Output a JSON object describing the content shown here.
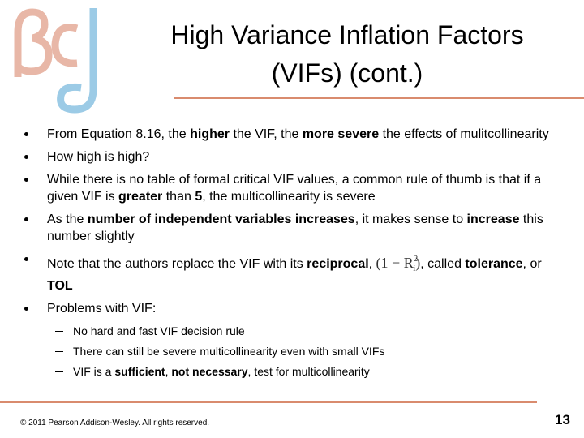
{
  "header": {
    "title": "High Variance Inflation Factors (VIFs) (cont.)"
  },
  "bullets": [
    {
      "runs": [
        {
          "text": "From Equation 8.16, the ",
          "style": "normal"
        },
        {
          "text": "higher",
          "style": "bold"
        },
        {
          "text": " the VIF, the ",
          "style": "normal"
        },
        {
          "text": "more severe",
          "style": "bold"
        },
        {
          "text": " the effects of mulitcollinearity",
          "style": "normal"
        }
      ]
    },
    {
      "runs": [
        {
          "text": "How high is high?",
          "style": "normal"
        }
      ]
    },
    {
      "runs": [
        {
          "text": "While there is no table of formal critical VIF values, a common rule of thumb is that if a given VIF is ",
          "style": "normal"
        },
        {
          "text": "greater",
          "style": "bold"
        },
        {
          "text": " than ",
          "style": "normal"
        },
        {
          "text": "5",
          "style": "bold"
        },
        {
          "text": ", the multicollinearity is severe",
          "style": "normal"
        }
      ]
    },
    {
      "runs": [
        {
          "text": "As the ",
          "style": "normal"
        },
        {
          "text": "number of independent variables increases",
          "style": "bold"
        },
        {
          "text": ", it makes sense to ",
          "style": "normal"
        },
        {
          "text": "increase",
          "style": "bold"
        },
        {
          "text": " this number slightly",
          "style": "normal"
        }
      ]
    },
    {
      "runs": [
        {
          "text": "Note that the authors replace the VIF with its ",
          "style": "normal"
        },
        {
          "text": "reciprocal",
          "style": "bold"
        },
        {
          "text": ", ",
          "style": "normal"
        },
        {
          "text": "(1 − R",
          "style": "math"
        },
        {
          "text": "2",
          "style": "sup"
        },
        {
          "text": "i",
          "style": "sub"
        },
        {
          "text": ")",
          "style": "math"
        },
        {
          "text": ", called ",
          "style": "normal"
        },
        {
          "text": "tolerance",
          "style": "bold"
        },
        {
          "text": ", or ",
          "style": "normal"
        },
        {
          "text": "TOL",
          "style": "bold"
        }
      ]
    },
    {
      "runs": [
        {
          "text": "Problems with VIF:",
          "style": "normal"
        }
      ],
      "subitems": [
        {
          "runs": [
            {
              "text": "No hard and fast VIF decision rule",
              "style": "normal"
            }
          ]
        },
        {
          "runs": [
            {
              "text": "There can still be severe multicollinearity even with small VIFs",
              "style": "normal"
            }
          ]
        },
        {
          "runs": [
            {
              "text": "VIF is a ",
              "style": "normal"
            },
            {
              "text": "sufficient",
              "style": "bold"
            },
            {
              "text": ", ",
              "style": "normal"
            },
            {
              "text": "not necessary",
              "style": "bold"
            },
            {
              "text": ", test for multicollinearity",
              "style": "normal"
            }
          ]
        }
      ]
    }
  ],
  "footer": {
    "copyright": "© 2011 Pearson Addison-Wesley. All rights reserved.",
    "page_number": "13"
  }
}
